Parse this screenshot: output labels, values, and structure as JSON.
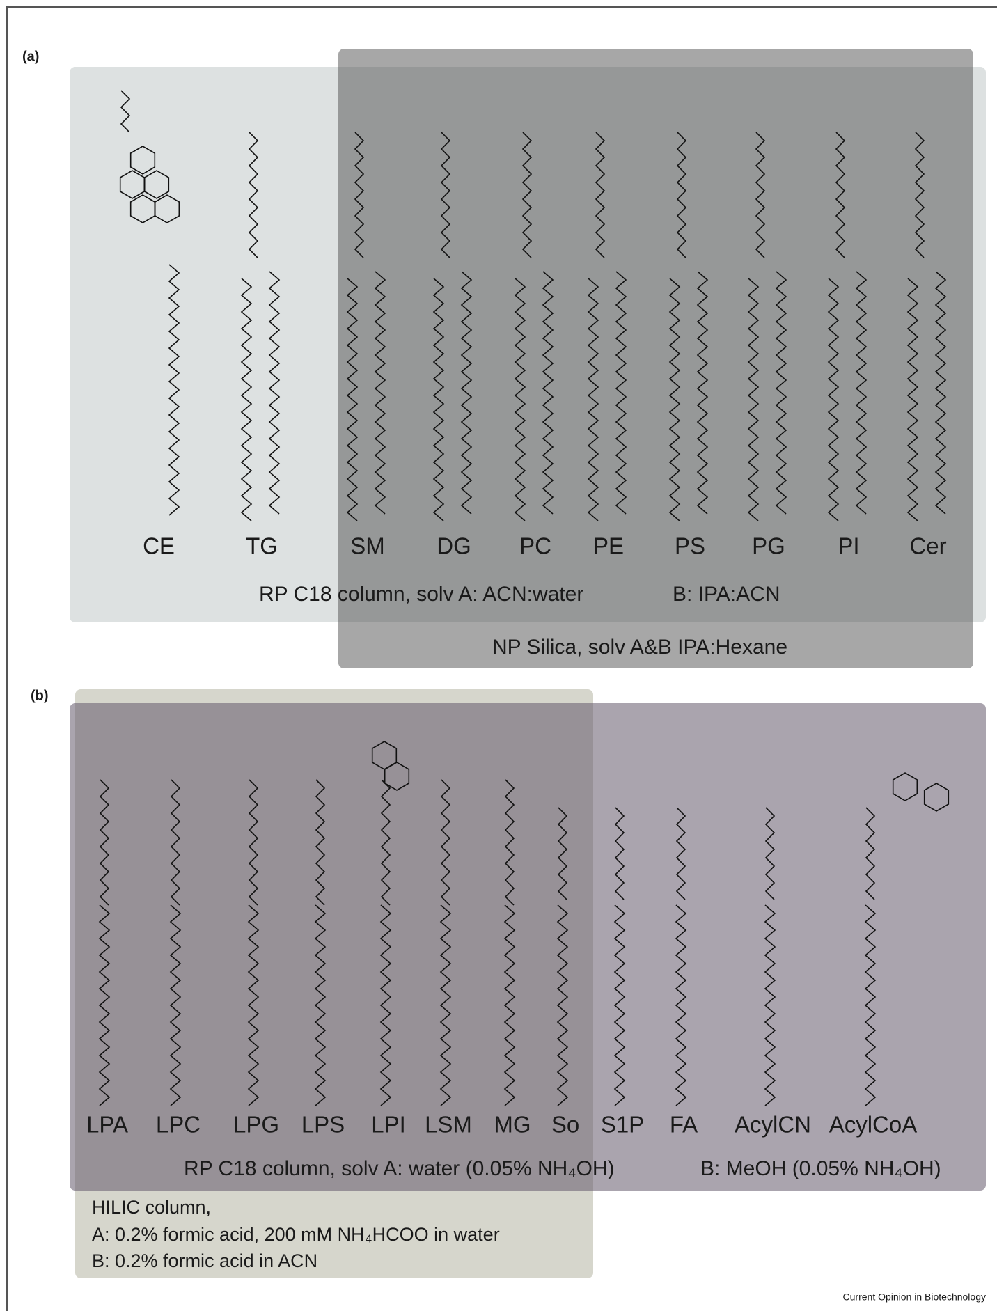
{
  "panel_a": {
    "label": "(a)",
    "lipids": [
      "CE",
      "TG",
      "SM",
      "DG",
      "PC",
      "PE",
      "PS",
      "PG",
      "PI",
      "Cer"
    ],
    "rp_column": "RP C18 column, solv A: ACN:water",
    "rp_b": "B: IPA:ACN",
    "np_column": "NP Silica, solv A&B IPA:Hexane"
  },
  "panel_b": {
    "label": "(b)",
    "lipids": [
      "LPA",
      "LPC",
      "LPG",
      "LPS",
      "LPI",
      "LSM",
      "MG",
      "So",
      "S1P",
      "FA",
      "AcylCN",
      "AcylCoA"
    ],
    "rp_column": "RP C18 column, solv A: water (0.05% NH₄OH)",
    "rp_b": "B: MeOH (0.05% NH₄OH)",
    "hilic": [
      "HILIC column,",
      "A: 0.2% formic acid, 200 mM NH₄HCOO in water",
      "B: 0.2% formic acid in ACN"
    ]
  },
  "credit": "Current Opinion in Biotechnology"
}
